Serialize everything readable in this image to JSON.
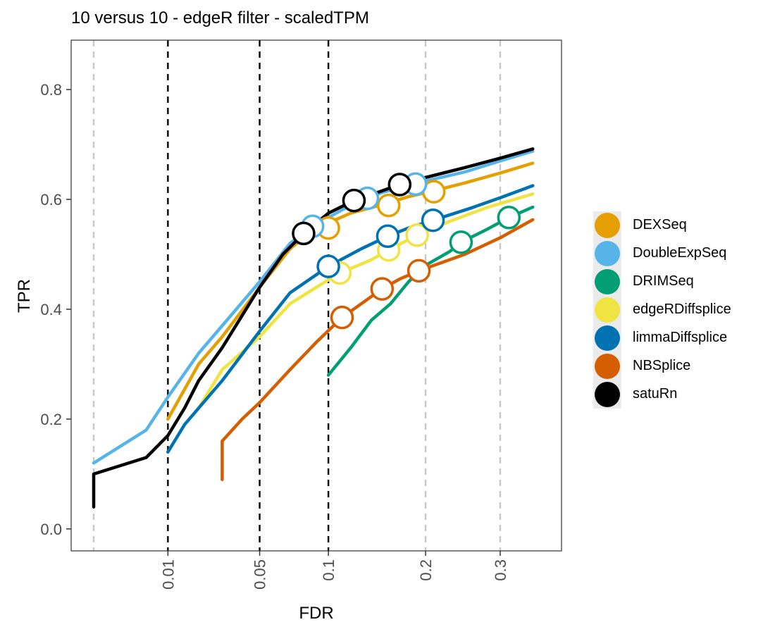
{
  "chart_data": {
    "type": "line",
    "title": "10 versus 10 - edgeR filter - scaledTPM",
    "xlabel": "FDR",
    "ylabel": "TPR",
    "xlim": [
      0.0,
      0.36
    ],
    "ylim": [
      -0.04,
      0.89
    ],
    "x_scale": "sqrt",
    "x_ticks": [
      0.01,
      0.05,
      0.1,
      0.2,
      0.3
    ],
    "x_tick_labels": [
      "0.01",
      "0.05",
      "0.1",
      "0.2",
      "0.3"
    ],
    "y_ticks": [
      0.0,
      0.2,
      0.4,
      0.6,
      0.8
    ],
    "y_tick_labels": [
      "0.0",
      "0.2",
      "0.4",
      "0.6",
      "0.8"
    ],
    "vlines_dashed_black": [
      0.01,
      0.05,
      0.1
    ],
    "vlines_dashed_grey": [
      0.0,
      0.2,
      0.3
    ],
    "legend_position": "right",
    "grid": false,
    "series": [
      {
        "name": "DEXSeq",
        "color": "#E69F00",
        "points": [
          [
            0.01,
            0.2
          ],
          [
            0.02,
            0.3
          ],
          [
            0.03,
            0.35
          ],
          [
            0.05,
            0.44
          ],
          [
            0.07,
            0.51
          ],
          [
            0.089,
            0.547
          ],
          [
            0.12,
            0.575
          ],
          [
            0.15,
            0.59
          ],
          [
            0.18,
            0.605
          ],
          [
            0.205,
            0.614
          ],
          [
            0.25,
            0.63
          ],
          [
            0.3,
            0.648
          ],
          [
            0.35,
            0.666
          ]
        ],
        "markers": [
          [
            0.1,
            0.548
          ],
          [
            0.158,
            0.589
          ],
          [
            0.21,
            0.614
          ]
        ]
      },
      {
        "name": "DoubleExpSeq",
        "color": "#56B4E9",
        "points": [
          [
            0.0,
            0.12
          ],
          [
            0.005,
            0.18
          ],
          [
            0.01,
            0.24
          ],
          [
            0.02,
            0.32
          ],
          [
            0.03,
            0.37
          ],
          [
            0.05,
            0.45
          ],
          [
            0.07,
            0.52
          ],
          [
            0.087,
            0.551
          ],
          [
            0.12,
            0.59
          ],
          [
            0.15,
            0.612
          ],
          [
            0.19,
            0.63
          ],
          [
            0.25,
            0.65
          ],
          [
            0.3,
            0.67
          ],
          [
            0.35,
            0.688
          ]
        ],
        "markers": [
          [
            0.087,
            0.551
          ],
          [
            0.136,
            0.602
          ],
          [
            0.188,
            0.628
          ]
        ]
      },
      {
        "name": "DRIMSeq",
        "color": "#009E73",
        "points": [
          [
            0.1,
            0.28
          ],
          [
            0.12,
            0.33
          ],
          [
            0.14,
            0.38
          ],
          [
            0.16,
            0.41
          ],
          [
            0.18,
            0.45
          ],
          [
            0.2,
            0.48
          ],
          [
            0.23,
            0.505
          ],
          [
            0.245,
            0.522
          ],
          [
            0.28,
            0.545
          ],
          [
            0.313,
            0.567
          ],
          [
            0.35,
            0.586
          ]
        ],
        "markers": [
          [
            0.245,
            0.522
          ],
          [
            0.313,
            0.567
          ]
        ]
      },
      {
        "name": "edgeRDiffsplice",
        "color": "#F0E442",
        "points": [
          [
            0.02,
            0.22
          ],
          [
            0.03,
            0.29
          ],
          [
            0.05,
            0.35
          ],
          [
            0.07,
            0.41
          ],
          [
            0.09,
            0.44
          ],
          [
            0.11,
            0.466
          ],
          [
            0.14,
            0.49
          ],
          [
            0.158,
            0.508
          ],
          [
            0.19,
            0.535
          ],
          [
            0.23,
            0.56
          ],
          [
            0.28,
            0.585
          ],
          [
            0.35,
            0.61
          ]
        ],
        "markers": [
          [
            0.11,
            0.466
          ],
          [
            0.158,
            0.508
          ],
          [
            0.19,
            0.535
          ]
        ]
      },
      {
        "name": "limmaDiffsplice",
        "color": "#0072B2",
        "points": [
          [
            0.01,
            0.14
          ],
          [
            0.015,
            0.19
          ],
          [
            0.03,
            0.27
          ],
          [
            0.05,
            0.36
          ],
          [
            0.07,
            0.43
          ],
          [
            0.1,
            0.478
          ],
          [
            0.13,
            0.51
          ],
          [
            0.157,
            0.533
          ],
          [
            0.18,
            0.548
          ],
          [
            0.209,
            0.562
          ],
          [
            0.26,
            0.585
          ],
          [
            0.3,
            0.603
          ],
          [
            0.35,
            0.625
          ]
        ],
        "markers": [
          [
            0.1,
            0.478
          ],
          [
            0.157,
            0.533
          ],
          [
            0.209,
            0.562
          ]
        ]
      },
      {
        "name": "NBSplice",
        "color": "#D55E00",
        "points": [
          [
            0.03,
            0.09
          ],
          [
            0.03,
            0.16
          ],
          [
            0.04,
            0.2
          ],
          [
            0.05,
            0.23
          ],
          [
            0.07,
            0.29
          ],
          [
            0.09,
            0.34
          ],
          [
            0.112,
            0.385
          ],
          [
            0.13,
            0.41
          ],
          [
            0.151,
            0.437
          ],
          [
            0.17,
            0.455
          ],
          [
            0.192,
            0.47
          ],
          [
            0.25,
            0.5
          ],
          [
            0.3,
            0.53
          ],
          [
            0.35,
            0.563
          ]
        ],
        "markers": [
          [
            0.112,
            0.385
          ],
          [
            0.151,
            0.437
          ],
          [
            0.192,
            0.47
          ]
        ]
      },
      {
        "name": "satuRn",
        "color": "#000000",
        "points": [
          [
            0.0,
            0.04
          ],
          [
            0.0,
            0.1
          ],
          [
            0.005,
            0.13
          ],
          [
            0.01,
            0.17
          ],
          [
            0.015,
            0.22
          ],
          [
            0.02,
            0.27
          ],
          [
            0.03,
            0.33
          ],
          [
            0.05,
            0.44
          ],
          [
            0.065,
            0.5
          ],
          [
            0.08,
            0.538
          ],
          [
            0.1,
            0.575
          ],
          [
            0.123,
            0.598
          ],
          [
            0.15,
            0.615
          ],
          [
            0.17,
            0.627
          ],
          [
            0.2,
            0.64
          ],
          [
            0.25,
            0.658
          ],
          [
            0.3,
            0.675
          ],
          [
            0.35,
            0.692
          ]
        ],
        "markers": [
          [
            0.08,
            0.538
          ],
          [
            0.123,
            0.598
          ],
          [
            0.17,
            0.627
          ]
        ]
      }
    ]
  }
}
